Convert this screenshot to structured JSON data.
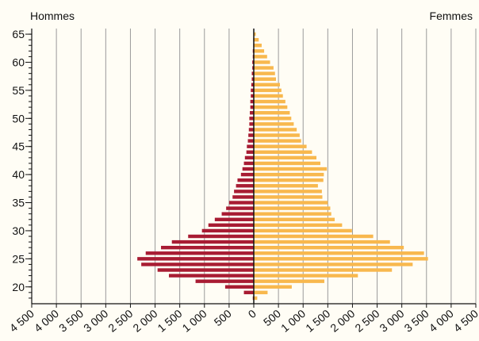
{
  "chart_data": {
    "type": "bar",
    "orientation": "horizontal",
    "y": [
      18,
      19,
      20,
      21,
      22,
      23,
      24,
      25,
      26,
      27,
      28,
      29,
      30,
      31,
      32,
      33,
      34,
      35,
      36,
      37,
      38,
      39,
      40,
      41,
      42,
      43,
      44,
      45,
      46,
      47,
      48,
      49,
      50,
      51,
      52,
      53,
      54,
      55,
      56,
      57,
      58,
      59,
      60,
      61,
      62,
      63,
      64,
      65
    ],
    "series": [
      {
        "name": "Hommes",
        "color": "#a81c33",
        "values": [
          -20,
          -200,
          -580,
          -1180,
          -1720,
          -1950,
          -2280,
          -2360,
          -2190,
          -1880,
          -1660,
          -1330,
          -1050,
          -920,
          -790,
          -650,
          -560,
          -500,
          -430,
          -400,
          -360,
          -330,
          -260,
          -230,
          -200,
          -180,
          -150,
          -140,
          -120,
          -110,
          -100,
          -90,
          -90,
          -80,
          -70,
          -70,
          -60,
          -60,
          -50,
          -40,
          -40,
          -30,
          -30,
          -20,
          -20,
          -10,
          -10,
          0
        ]
      },
      {
        "name": "Femmes",
        "color": "#f8b84e",
        "values": [
          70,
          280,
          770,
          1430,
          2110,
          2800,
          3220,
          3530,
          3450,
          3040,
          2760,
          2420,
          1990,
          1790,
          1640,
          1570,
          1550,
          1500,
          1390,
          1380,
          1300,
          1410,
          1420,
          1480,
          1350,
          1270,
          1180,
          1070,
          960,
          930,
          870,
          810,
          760,
          730,
          680,
          640,
          590,
          560,
          530,
          450,
          430,
          400,
          330,
          270,
          210,
          160,
          100,
          40
        ]
      }
    ],
    "xlim": [
      -4500,
      4500
    ],
    "xticks": [
      {
        "value": -4500,
        "label": "4 500"
      },
      {
        "value": -4000,
        "label": "4 000"
      },
      {
        "value": -3500,
        "label": "3 500"
      },
      {
        "value": -3000,
        "label": "3 000"
      },
      {
        "value": -2500,
        "label": "2 500"
      },
      {
        "value": -2000,
        "label": "2 000"
      },
      {
        "value": -1500,
        "label": "1 500"
      },
      {
        "value": -1000,
        "label": "1 000"
      },
      {
        "value": -500,
        "label": "500"
      },
      0,
      500,
      {
        "value": 1000,
        "label": "1 000"
      },
      {
        "value": 1500,
        "label": "1 500"
      },
      {
        "value": 2000,
        "label": "2 000"
      },
      {
        "value": 2500,
        "label": "2 500"
      },
      {
        "value": 3000,
        "label": "3 000"
      },
      {
        "value": 3500,
        "label": "3 500"
      },
      {
        "value": 4000,
        "label": "4 000"
      },
      {
        "value": 4500,
        "label": "4 500"
      }
    ],
    "ylim": [
      17,
      66
    ],
    "yticks": [
      20,
      25,
      30,
      35,
      40,
      45,
      50,
      55,
      60,
      65
    ],
    "grid": true
  }
}
